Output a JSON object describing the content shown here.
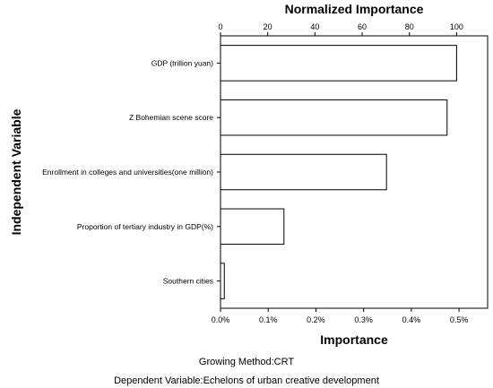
{
  "chart_data": {
    "type": "bar",
    "orientation": "horizontal",
    "title_top": "Normalized Importance",
    "xlabel": "Importance",
    "ylabel": "Independent Variable",
    "categories": [
      "GDP (trillion yuan)",
      "Z Bohemian scene score",
      "Enrollment in colleges and universities(one million)",
      "Proportion of tertiary industry in GDP(%)",
      "Southern cities"
    ],
    "values": [
      0.00495,
      0.00475,
      0.00348,
      0.00133,
      8e-05
    ],
    "normalized_importance": [
      100,
      96,
      70,
      27,
      1.6
    ],
    "xlim": [
      0,
      0.0056
    ],
    "x_ticks": [
      "0.0%",
      "0.1%",
      "0.2%",
      "0.3%",
      "0.4%",
      "0.5%"
    ],
    "x_tick_values": [
      0,
      0.001,
      0.002,
      0.003,
      0.004,
      0.005
    ],
    "top_ticks": [
      "0",
      "20",
      "40",
      "60",
      "80",
      "100"
    ],
    "top_tick_values": [
      0,
      20,
      40,
      60,
      80,
      100
    ],
    "grid": false,
    "bar_fill": "#ffffff",
    "bar_stroke": "#000000"
  },
  "footer": {
    "growing_method": "Growing Method:CRT",
    "dependent_variable": "Dependent Variable:Echelons of urban creative development"
  }
}
